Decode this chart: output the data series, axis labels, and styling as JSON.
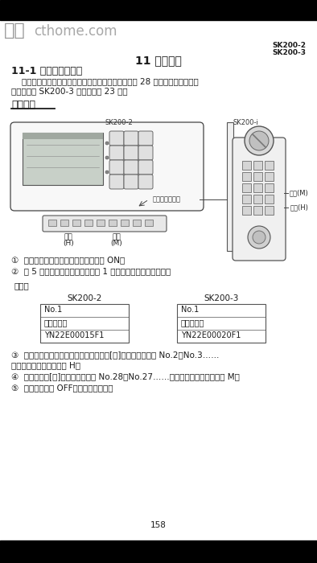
{
  "bg_color": "#ffffff",
  "top_bar_color": "#000000",
  "bottom_bar_color": "#000000",
  "watermark_color_top": "#888888",
  "watermark_color_bottom": "#999999",
  "text_color": "#1a1a1a",
  "diagram_color": "#444444",
  "chapter_title": "11 服务诊断",
  "section_title": "11-1 现状的服务诊断",
  "para_indent": "    根据机电控制器的数据，可以将当前的服务诊断内容 28 项，显示在多功能显",
  "para_line2": "示器上，但 SK200-3 的显示只有 23 项。",
  "display_method": "显示方法",
  "sk200_2_panel_label": "SK200-2",
  "sk200_i_panel_label": "SK200-i",
  "buzzer_label": "蜂鸣器停止开关",
  "front_label": "前进",
  "front_label2": "(H)",
  "rear_label": "后退",
  "rear_label2": "(M)",
  "rear_m": "后退(M)",
  "front_h": "前进(H)",
  "sk200_2_subscript": "SK200-2",
  "sk200_3_subscript": "SK200-3",
  "header_sk200_2": "SK200-2",
  "header_sk200_3": "SK200-3",
  "step1": "①  按住蜂鸣器停止开关，钥匙开关回到 ON。",
  "step2": "②  按 5 次蜂鸣器停止开关，显示第 1 项目内容机电控制器编号。",
  "example": "（例）",
  "tbl2_header": "SK200-2",
  "tbl3_header": "SK200-3",
  "tbl2_r1": "No.1",
  "tbl2_r2": "机电控制器",
  "tbl2_r3": "YN22E00015F1",
  "tbl3_r1": "No.1",
  "tbl3_r2": "机电控制器",
  "tbl3_r3": "YN22E00020F1",
  "step3a": "③  打开开关面板下面的盖子，连接校时的[时]修改开关，使按 No.2、No.3……",
  "step3b": "顺序显示。（开关标记为 H）",
  "step4": "④  连接校时的[分]修改开关，使按 No.28、No.27……顺序返回。（开关标记为 M）",
  "step5": "⑤  不将开关置于 OFF，显示便不消失。",
  "page_number": "158"
}
